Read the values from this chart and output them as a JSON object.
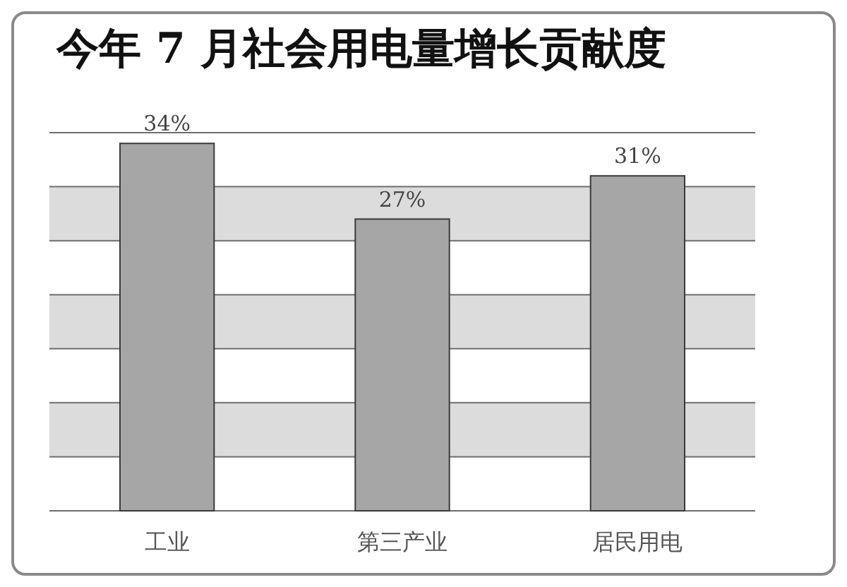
{
  "chart_data": {
    "type": "bar",
    "title": "今年 7 月社会用电量增长贡献度",
    "categories": [
      "工业",
      "第三产业",
      "居民用电"
    ],
    "values": [
      34,
      27,
      31
    ],
    "value_labels": [
      "34%",
      "27%",
      "31%"
    ],
    "color": "#a6a6a6",
    "ylim": [
      0,
      35
    ],
    "yticks": [
      {
        "value": 0,
        "label": null
      },
      {
        "value": 5,
        "label": null
      },
      {
        "value": 10,
        "label": null
      },
      {
        "value": 15,
        "label": null
      },
      {
        "value": 20,
        "label": null
      },
      {
        "value": 25,
        "label": null
      },
      {
        "value": 30,
        "label": null
      },
      {
        "value": 35,
        "label": null
      }
    ],
    "tick_labels": "x",
    "grid": "y",
    "bands": [
      {
        "axis": "y",
        "from": 5,
        "to": 10,
        "color": "#dcdcdc"
      },
      {
        "axis": "y",
        "from": 15,
        "to": 20,
        "color": "#dcdcdc"
      },
      {
        "axis": "y",
        "from": 25,
        "to": 30,
        "color": "#dcdcdc"
      }
    ]
  }
}
